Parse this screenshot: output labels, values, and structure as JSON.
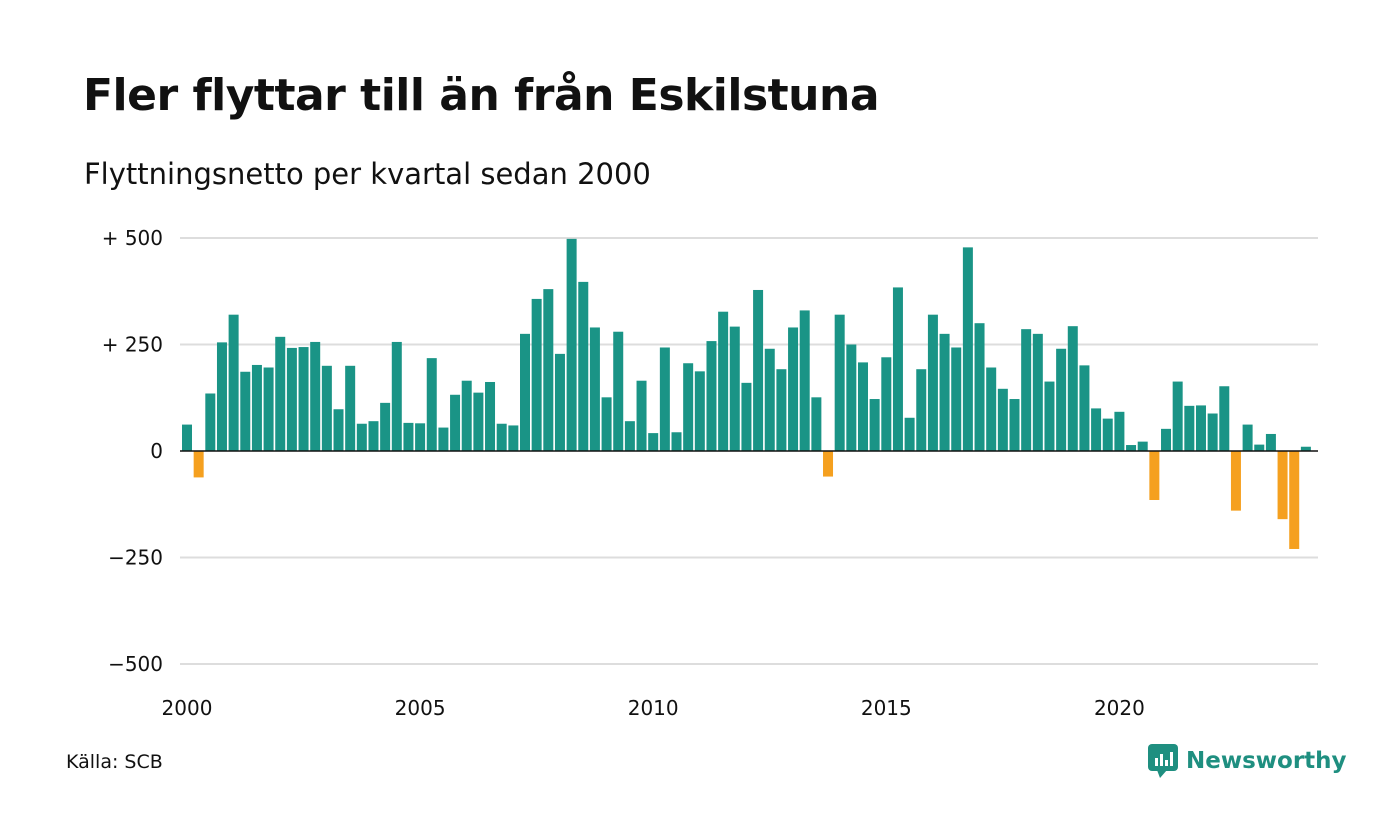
{
  "chart_data": {
    "type": "bar",
    "title": "Fler flyttar till än från Eskilstuna",
    "subtitle": "Flyttningsnetto per kvartal sedan 2000",
    "xlabel": "",
    "ylabel": "",
    "ylim": [
      -500,
      500
    ],
    "y_ticks": [
      500,
      250,
      0,
      -250,
      -500
    ],
    "y_tick_labels": [
      "+ 500",
      "+ 250",
      "0",
      "−250",
      "−500"
    ],
    "x_tick_years": [
      2000,
      2005,
      2010,
      2015,
      2020
    ],
    "x_tick_labels": [
      "2000",
      "2005",
      "2010",
      "2015",
      "2020"
    ],
    "start_year": 2000,
    "colors": {
      "positive": "#1a9486",
      "negative": "#f5a01f"
    },
    "grid": true,
    "values": [
      62,
      -62,
      135,
      255,
      320,
      186,
      202,
      196,
      268,
      242,
      244,
      256,
      200,
      98,
      200,
      64,
      70,
      113,
      256,
      66,
      65,
      218,
      55,
      132,
      165,
      137,
      162,
      64,
      60,
      275,
      357,
      380,
      228,
      498,
      397,
      290,
      126,
      280,
      70,
      165,
      42,
      243,
      44,
      206,
      187,
      258,
      327,
      292,
      160,
      378,
      240,
      192,
      290,
      330,
      126,
      -60,
      320,
      250,
      208,
      122,
      220,
      384,
      78,
      192,
      320,
      275,
      243,
      478,
      300,
      196,
      146,
      122,
      286,
      275,
      163,
      240,
      293,
      201,
      100,
      76,
      92,
      14,
      22,
      -115,
      52,
      163,
      106,
      107,
      88,
      152,
      -140,
      62,
      15,
      40,
      -160,
      -230,
      10
    ]
  },
  "source": "Källa: SCB",
  "logo": {
    "text": "Newsworthy",
    "color": "#1f8f80"
  }
}
